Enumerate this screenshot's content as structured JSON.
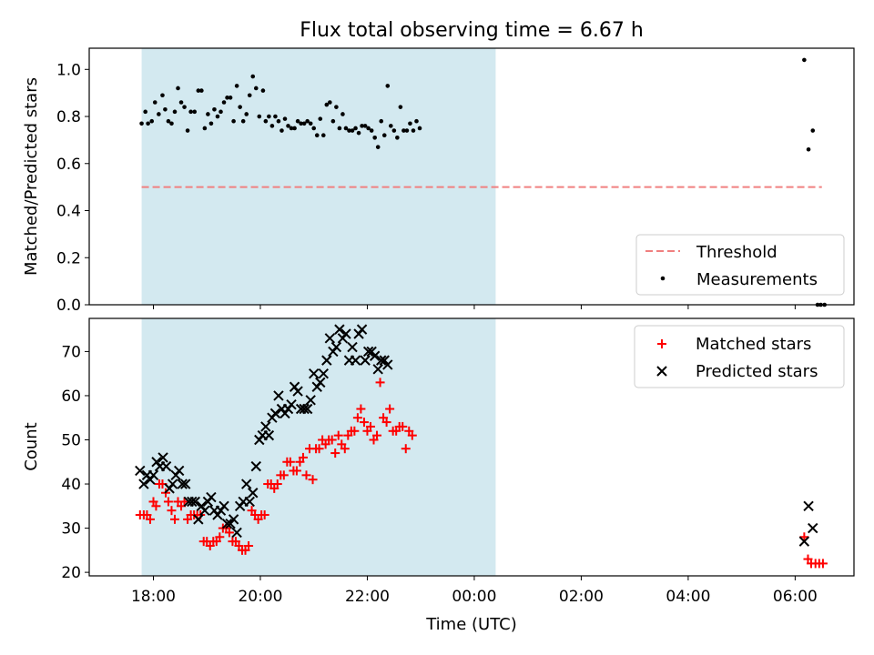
{
  "chart_data": {
    "title": "Flux total observing time = 6.67 h",
    "xlabel": "Time (UTC)",
    "x_ticks": [
      {
        "t": -6,
        "label": "18:00"
      },
      {
        "t": -4,
        "label": "20:00"
      },
      {
        "t": -2,
        "label": "22:00"
      },
      {
        "t": 0,
        "label": "00:00"
      },
      {
        "t": 2,
        "label": "02:00"
      },
      {
        "t": 4,
        "label": "04:00"
      },
      {
        "t": 6,
        "label": "06:00"
      }
    ],
    "xlim": [
      -7.2,
      7.1
    ],
    "observing_window": {
      "start": -6.22,
      "end": 0.4,
      "color": "#d3e9f0"
    },
    "top_panel": {
      "type": "scatter",
      "ylabel": "Matched/Predicted stars",
      "ylim": [
        0,
        1.09
      ],
      "yticks": [
        "0.0",
        "0.2",
        "0.4",
        "0.6",
        "0.8",
        "1.0"
      ],
      "threshold": {
        "name": "Threshold",
        "value": 0.5,
        "x_start": -6.22,
        "x_end": 6.5,
        "color": "#f08080"
      },
      "measurements_name": "Measurements",
      "measurements": [
        [
          -6.22,
          0.77
        ],
        [
          -6.15,
          0.82
        ],
        [
          -6.1,
          0.77
        ],
        [
          -6.03,
          0.78
        ],
        [
          -5.97,
          0.86
        ],
        [
          -5.9,
          0.81
        ],
        [
          -5.83,
          0.89
        ],
        [
          -5.78,
          0.83
        ],
        [
          -5.72,
          0.78
        ],
        [
          -5.66,
          0.77
        ],
        [
          -5.6,
          0.82
        ],
        [
          -5.54,
          0.92
        ],
        [
          -5.48,
          0.86
        ],
        [
          -5.42,
          0.84
        ],
        [
          -5.36,
          0.74
        ],
        [
          -5.3,
          0.82
        ],
        [
          -5.23,
          0.82
        ],
        [
          -5.16,
          0.91
        ],
        [
          -5.1,
          0.91
        ],
        [
          -5.04,
          0.75
        ],
        [
          -4.98,
          0.81
        ],
        [
          -4.92,
          0.77
        ],
        [
          -4.86,
          0.83
        ],
        [
          -4.8,
          0.8
        ],
        [
          -4.74,
          0.82
        ],
        [
          -4.68,
          0.86
        ],
        [
          -4.62,
          0.88
        ],
        [
          -4.56,
          0.88
        ],
        [
          -4.5,
          0.78
        ],
        [
          -4.44,
          0.93
        ],
        [
          -4.38,
          0.84
        ],
        [
          -4.32,
          0.78
        ],
        [
          -4.26,
          0.81
        ],
        [
          -4.2,
          0.89
        ],
        [
          -4.14,
          0.97
        ],
        [
          -4.08,
          0.92
        ],
        [
          -4.02,
          0.8
        ],
        [
          -3.95,
          0.91
        ],
        [
          -3.9,
          0.78
        ],
        [
          -3.84,
          0.8
        ],
        [
          -3.78,
          0.76
        ],
        [
          -3.72,
          0.8
        ],
        [
          -3.66,
          0.78
        ],
        [
          -3.6,
          0.74
        ],
        [
          -3.54,
          0.79
        ],
        [
          -3.48,
          0.76
        ],
        [
          -3.42,
          0.75
        ],
        [
          -3.36,
          0.75
        ],
        [
          -3.3,
          0.78
        ],
        [
          -3.24,
          0.77
        ],
        [
          -3.18,
          0.77
        ],
        [
          -3.12,
          0.78
        ],
        [
          -3.06,
          0.77
        ],
        [
          -3.0,
          0.75
        ],
        [
          -2.94,
          0.72
        ],
        [
          -2.88,
          0.79
        ],
        [
          -2.82,
          0.72
        ],
        [
          -2.76,
          0.85
        ],
        [
          -2.7,
          0.86
        ],
        [
          -2.64,
          0.78
        ],
        [
          -2.58,
          0.84
        ],
        [
          -2.52,
          0.75
        ],
        [
          -2.46,
          0.81
        ],
        [
          -2.4,
          0.75
        ],
        [
          -2.34,
          0.74
        ],
        [
          -2.28,
          0.74
        ],
        [
          -2.22,
          0.75
        ],
        [
          -2.16,
          0.73
        ],
        [
          -2.1,
          0.76
        ],
        [
          -2.04,
          0.76
        ],
        [
          -1.98,
          0.75
        ],
        [
          -1.92,
          0.74
        ],
        [
          -1.86,
          0.71
        ],
        [
          -1.8,
          0.67
        ],
        [
          -1.74,
          0.78
        ],
        [
          -1.68,
          0.72
        ],
        [
          -1.62,
          0.93
        ],
        [
          -1.56,
          0.76
        ],
        [
          -1.5,
          0.74
        ],
        [
          -1.44,
          0.71
        ],
        [
          -1.38,
          0.84
        ],
        [
          -1.32,
          0.74
        ],
        [
          -1.26,
          0.74
        ],
        [
          -1.2,
          0.77
        ],
        [
          -1.14,
          0.74
        ],
        [
          -1.08,
          0.78
        ],
        [
          -1.02,
          0.75
        ],
        [
          6.17,
          1.04
        ],
        [
          6.25,
          0.66
        ],
        [
          6.33,
          0.74
        ],
        [
          6.42,
          0.0
        ],
        [
          6.48,
          0.0
        ],
        [
          6.55,
          0.0
        ]
      ],
      "legend_position": "lower right"
    },
    "bottom_panel": {
      "type": "scatter",
      "ylabel": "Count",
      "ylim": [
        19.2,
        77.5
      ],
      "yticks": [
        "20",
        "30",
        "40",
        "50",
        "60",
        "70"
      ],
      "legend_position": "upper right",
      "series": [
        {
          "name": "Matched stars",
          "marker": "plus",
          "color": "#ff0000",
          "points": [
            [
              -6.25,
              33
            ],
            [
              -6.18,
              33
            ],
            [
              -6.12,
              33
            ],
            [
              -6.06,
              32
            ],
            [
              -6.0,
              36
            ],
            [
              -5.95,
              35
            ],
            [
              -5.89,
              40
            ],
            [
              -5.83,
              40
            ],
            [
              -5.77,
              38
            ],
            [
              -5.72,
              36
            ],
            [
              -5.66,
              34
            ],
            [
              -5.6,
              32
            ],
            [
              -5.54,
              36
            ],
            [
              -5.48,
              35
            ],
            [
              -5.42,
              36
            ],
            [
              -5.36,
              32
            ],
            [
              -5.3,
              33
            ],
            [
              -5.24,
              33
            ],
            [
              -5.18,
              33
            ],
            [
              -5.12,
              33
            ],
            [
              -5.06,
              27
            ],
            [
              -5.0,
              27
            ],
            [
              -4.94,
              26
            ],
            [
              -4.88,
              27
            ],
            [
              -4.82,
              27
            ],
            [
              -4.76,
              28
            ],
            [
              -4.7,
              30
            ],
            [
              -4.64,
              30
            ],
            [
              -4.58,
              29
            ],
            [
              -4.52,
              27
            ],
            [
              -4.46,
              27
            ],
            [
              -4.4,
              26
            ],
            [
              -4.34,
              25
            ],
            [
              -4.28,
              25
            ],
            [
              -4.22,
              26
            ],
            [
              -4.16,
              34
            ],
            [
              -4.1,
              33
            ],
            [
              -4.04,
              32
            ],
            [
              -3.98,
              33
            ],
            [
              -3.92,
              33
            ],
            [
              -3.86,
              40
            ],
            [
              -3.8,
              40
            ],
            [
              -3.74,
              39
            ],
            [
              -3.68,
              40
            ],
            [
              -3.62,
              42
            ],
            [
              -3.56,
              42
            ],
            [
              -3.5,
              45
            ],
            [
              -3.44,
              45
            ],
            [
              -3.38,
              43
            ],
            [
              -3.32,
              43
            ],
            [
              -3.26,
              45
            ],
            [
              -3.2,
              46
            ],
            [
              -3.14,
              42
            ],
            [
              -3.08,
              48
            ],
            [
              -3.02,
              41
            ],
            [
              -2.96,
              48
            ],
            [
              -2.9,
              48
            ],
            [
              -2.84,
              50
            ],
            [
              -2.78,
              49
            ],
            [
              -2.72,
              50
            ],
            [
              -2.66,
              50
            ],
            [
              -2.6,
              47
            ],
            [
              -2.54,
              51
            ],
            [
              -2.48,
              49
            ],
            [
              -2.42,
              48
            ],
            [
              -2.36,
              51
            ],
            [
              -2.3,
              52
            ],
            [
              -2.24,
              52
            ],
            [
              -2.18,
              55
            ],
            [
              -2.12,
              57
            ],
            [
              -2.06,
              54
            ],
            [
              -2.0,
              52
            ],
            [
              -1.94,
              53
            ],
            [
              -1.88,
              50
            ],
            [
              -1.82,
              51
            ],
            [
              -1.76,
              63
            ],
            [
              -1.7,
              55
            ],
            [
              -1.64,
              54
            ],
            [
              -1.58,
              57
            ],
            [
              -1.52,
              52
            ],
            [
              -1.46,
              52
            ],
            [
              -1.4,
              53
            ],
            [
              -1.34,
              53
            ],
            [
              -1.28,
              48
            ],
            [
              -1.22,
              52
            ],
            [
              -1.16,
              51
            ],
            [
              6.17,
              28
            ],
            [
              6.24,
              23
            ],
            [
              6.3,
              22
            ],
            [
              6.38,
              22
            ],
            [
              6.45,
              22
            ],
            [
              6.52,
              22
            ]
          ]
        },
        {
          "name": "Predicted stars",
          "marker": "x",
          "color": "#000000",
          "points": [
            [
              -6.25,
              43
            ],
            [
              -6.18,
              40
            ],
            [
              -6.12,
              42
            ],
            [
              -6.06,
              41
            ],
            [
              -6.0,
              42
            ],
            [
              -5.94,
              45
            ],
            [
              -5.88,
              44
            ],
            [
              -5.82,
              46
            ],
            [
              -5.76,
              44
            ],
            [
              -5.7,
              39
            ],
            [
              -5.64,
              40
            ],
            [
              -5.58,
              42
            ],
            [
              -5.52,
              43
            ],
            [
              -5.46,
              40
            ],
            [
              -5.4,
              40
            ],
            [
              -5.34,
              36
            ],
            [
              -5.28,
              36
            ],
            [
              -5.22,
              36
            ],
            [
              -5.16,
              32
            ],
            [
              -5.1,
              35
            ],
            [
              -5.04,
              34
            ],
            [
              -4.98,
              36
            ],
            [
              -4.92,
              37
            ],
            [
              -4.86,
              34
            ],
            [
              -4.8,
              33
            ],
            [
              -4.74,
              34
            ],
            [
              -4.68,
              35
            ],
            [
              -4.62,
              31
            ],
            [
              -4.56,
              31
            ],
            [
              -4.5,
              32
            ],
            [
              -4.44,
              29
            ],
            [
              -4.38,
              35
            ],
            [
              -4.32,
              36
            ],
            [
              -4.26,
              40
            ],
            [
              -4.2,
              36
            ],
            [
              -4.14,
              38
            ],
            [
              -4.08,
              44
            ],
            [
              -4.02,
              50
            ],
            [
              -3.96,
              51
            ],
            [
              -3.9,
              53
            ],
            [
              -3.84,
              51
            ],
            [
              -3.78,
              55
            ],
            [
              -3.72,
              56
            ],
            [
              -3.66,
              60
            ],
            [
              -3.6,
              57
            ],
            [
              -3.54,
              56
            ],
            [
              -3.48,
              57
            ],
            [
              -3.42,
              58
            ],
            [
              -3.36,
              62
            ],
            [
              -3.3,
              61
            ],
            [
              -3.24,
              57
            ],
            [
              -3.18,
              57
            ],
            [
              -3.12,
              57
            ],
            [
              -3.06,
              59
            ],
            [
              -3.0,
              65
            ],
            [
              -2.94,
              62
            ],
            [
              -2.88,
              63
            ],
            [
              -2.82,
              65
            ],
            [
              -2.76,
              68
            ],
            [
              -2.7,
              73
            ],
            [
              -2.64,
              70
            ],
            [
              -2.58,
              71
            ],
            [
              -2.52,
              75
            ],
            [
              -2.46,
              73
            ],
            [
              -2.4,
              74
            ],
            [
              -2.34,
              68
            ],
            [
              -2.28,
              71
            ],
            [
              -2.22,
              68
            ],
            [
              -2.16,
              74
            ],
            [
              -2.1,
              75
            ],
            [
              -2.04,
              68
            ],
            [
              -1.98,
              70
            ],
            [
              -1.92,
              70
            ],
            [
              -1.86,
              69
            ],
            [
              -1.8,
              66
            ],
            [
              -1.74,
              68
            ],
            [
              -1.68,
              68
            ],
            [
              -1.62,
              67
            ],
            [
              6.17,
              27
            ],
            [
              6.25,
              35
            ],
            [
              6.33,
              30
            ]
          ]
        }
      ]
    }
  }
}
